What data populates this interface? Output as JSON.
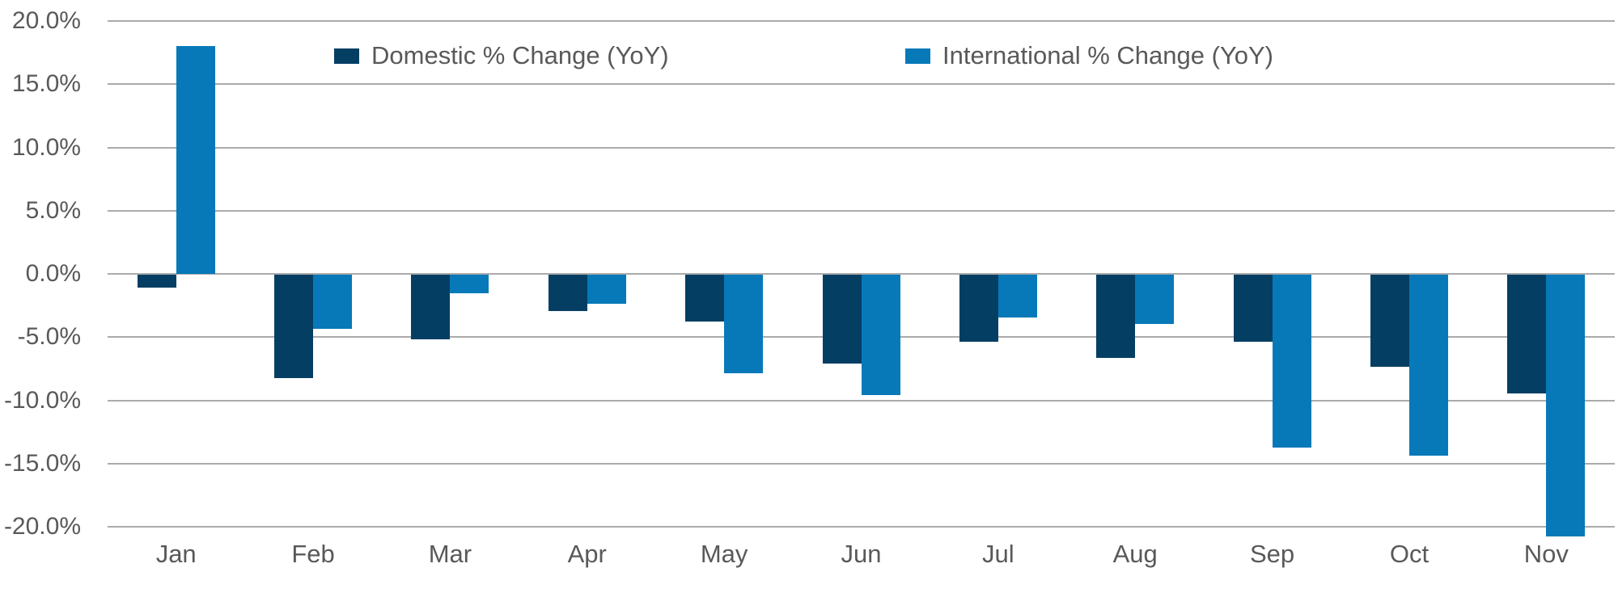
{
  "chart_data": {
    "type": "bar",
    "title": "",
    "categories": [
      "Jan",
      "Feb",
      "Mar",
      "Apr",
      "May",
      "Jun",
      "Jul",
      "Aug",
      "Sep",
      "Oct",
      "Nov"
    ],
    "series": [
      {
        "name": "Domestic % Change (YoY)",
        "color": "#043E63",
        "values": [
          -1.0,
          -8.2,
          -5.1,
          -2.9,
          -3.7,
          -7.0,
          -5.3,
          -6.6,
          -5.3,
          -7.3,
          -9.4
        ]
      },
      {
        "name": "International % Change (YoY)",
        "color": "#0779B8",
        "values": [
          18.0,
          -4.3,
          -1.5,
          -2.3,
          -7.8,
          -9.5,
          -3.4,
          -3.9,
          -13.7,
          -14.3,
          -20.7
        ]
      }
    ],
    "xlabel": "",
    "ylabel": "",
    "ylim": [
      -20,
      20
    ],
    "y_ticks": [
      20,
      15,
      10,
      5,
      0,
      -5,
      -10,
      -15,
      -20
    ],
    "y_tick_labels": [
      "20.0%",
      "15.0%",
      "10.0%",
      "5.0%",
      "0.0%",
      "-5.0%",
      "-10.0%",
      "-15.0%",
      "-20.0%"
    ],
    "grid": "horizontal",
    "legend_position": "top-inside",
    "colors": {
      "gridline": "#ABABAB",
      "axis_text": "#595959",
      "background": "#FFFFFF"
    }
  }
}
